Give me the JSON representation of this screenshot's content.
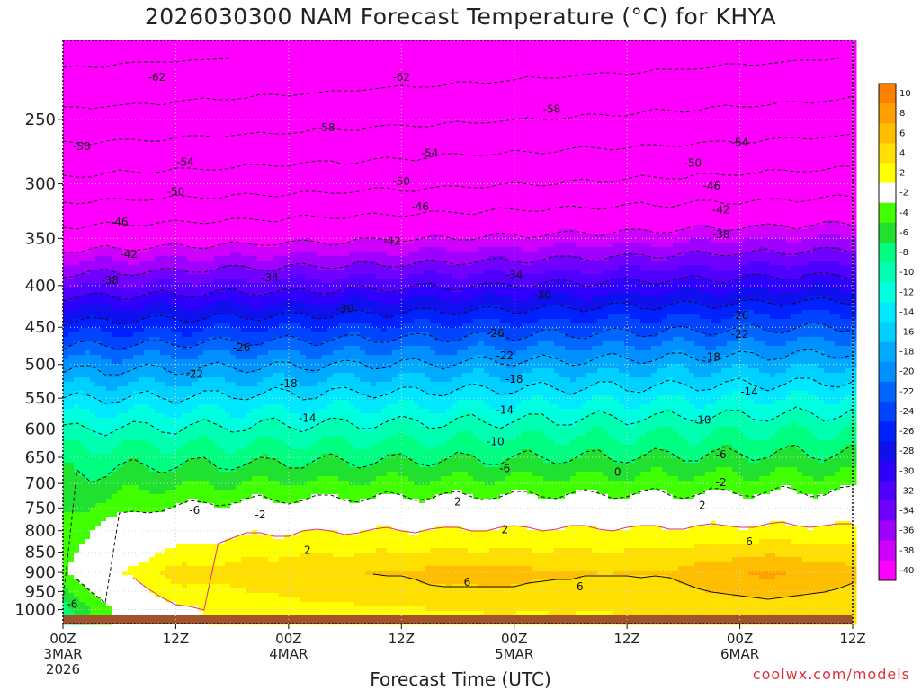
{
  "title": "2026030300 NAM Forecast Temperature (°C) for KHYA",
  "credit": "coolwx.com/models",
  "chart_data": {
    "type": "heatmap",
    "title": "2026030300 NAM Forecast Temperature (°C) for KHYA",
    "xlabel": "Forecast Time (UTC)",
    "ylabel": "",
    "x_ticks": [
      {
        "hour": 0,
        "lines": [
          "00Z",
          "3MAR",
          "2026"
        ]
      },
      {
        "hour": 12,
        "lines": [
          "12Z"
        ]
      },
      {
        "hour": 24,
        "lines": [
          "00Z",
          "4MAR"
        ]
      },
      {
        "hour": 36,
        "lines": [
          "12Z"
        ]
      },
      {
        "hour": 48,
        "lines": [
          "00Z",
          "5MAR"
        ]
      },
      {
        "hour": 60,
        "lines": [
          "12Z"
        ]
      },
      {
        "hour": 72,
        "lines": [
          "00Z",
          "6MAR"
        ]
      },
      {
        "hour": 84,
        "lines": [
          "12Z"
        ]
      }
    ],
    "xlim": [
      0,
      84
    ],
    "y_ticks": [
      250,
      300,
      350,
      400,
      450,
      500,
      550,
      600,
      650,
      700,
      750,
      800,
      850,
      900,
      950,
      1000
    ],
    "ylim": [
      1040,
      200
    ],
    "y_scale": "log",
    "grid": true,
    "colorbar": {
      "placement": "right",
      "labels": [
        "10",
        "8",
        "6",
        "4",
        "2",
        "-2",
        "-4",
        "-6",
        "-8",
        "-10",
        "-12",
        "-14",
        "-16",
        "-18",
        "-20",
        "-22",
        "-24",
        "-26",
        "-28",
        "-30",
        "-32",
        "-34",
        "-36",
        "-38",
        "-40"
      ],
      "colors": [
        "#ff8000",
        "#ff9f00",
        "#ffbf00",
        "#ffdf00",
        "#ffff00",
        "#ffffff",
        "#40ff00",
        "#20e030",
        "#00ff80",
        "#00ffb0",
        "#00ffdf",
        "#00e8ff",
        "#00d0ff",
        "#00aaff",
        "#0090ff",
        "#0066ff",
        "#0044ff",
        "#0022ff",
        "#1010ee",
        "#3000ff",
        "#5000ff",
        "#7000ff",
        "#a000ff",
        "#d000ff",
        "#ff00ff"
      ]
    },
    "temperature_profile": [
      {
        "pressure": 1000,
        "temp": 4
      },
      {
        "pressure": 950,
        "temp": 5
      },
      {
        "pressure": 900,
        "temp": 6
      },
      {
        "pressure": 850,
        "temp": 4
      },
      {
        "pressure": 800,
        "temp": 2
      },
      {
        "pressure": 750,
        "temp": -1
      },
      {
        "pressure": 700,
        "temp": -4
      },
      {
        "pressure": 650,
        "temp": -7
      },
      {
        "pressure": 600,
        "temp": -10
      },
      {
        "pressure": 550,
        "temp": -14
      },
      {
        "pressure": 500,
        "temp": -19
      },
      {
        "pressure": 450,
        "temp": -25
      },
      {
        "pressure": 400,
        "temp": -32
      },
      {
        "pressure": 350,
        "temp": -40
      },
      {
        "pressure": 300,
        "temp": -49
      },
      {
        "pressure": 250,
        "temp": -57
      },
      {
        "pressure": 210,
        "temp": -63
      }
    ],
    "contour_labels": [
      {
        "text": "-62",
        "hour": 10,
        "pressure": 222
      },
      {
        "text": "-62",
        "hour": 36,
        "pressure": 222
      },
      {
        "text": "-58",
        "hour": 2,
        "pressure": 270
      },
      {
        "text": "-58",
        "hour": 28,
        "pressure": 256
      },
      {
        "text": "-58",
        "hour": 52,
        "pressure": 243
      },
      {
        "text": "-54",
        "hour": 13,
        "pressure": 282
      },
      {
        "text": "-54",
        "hour": 39,
        "pressure": 275
      },
      {
        "text": "-54",
        "hour": 72,
        "pressure": 267
      },
      {
        "text": "-50",
        "hour": 12,
        "pressure": 307
      },
      {
        "text": "-50",
        "hour": 36,
        "pressure": 298
      },
      {
        "text": "-50",
        "hour": 67,
        "pressure": 283
      },
      {
        "text": "-46",
        "hour": 6,
        "pressure": 334
      },
      {
        "text": "-46",
        "hour": 38,
        "pressure": 320
      },
      {
        "text": "-46",
        "hour": 69,
        "pressure": 302
      },
      {
        "text": "-42",
        "hour": 7,
        "pressure": 366
      },
      {
        "text": "-42",
        "hour": 35,
        "pressure": 353
      },
      {
        "text": "-42",
        "hour": 70,
        "pressure": 323
      },
      {
        "text": "-38",
        "hour": 5,
        "pressure": 394
      },
      {
        "text": "-38",
        "hour": 70,
        "pressure": 346
      },
      {
        "text": "-34",
        "hour": 22,
        "pressure": 391
      },
      {
        "text": "-34",
        "hour": 48,
        "pressure": 388
      },
      {
        "text": "-30",
        "hour": 30,
        "pressure": 427
      },
      {
        "text": "-30",
        "hour": 51,
        "pressure": 411
      },
      {
        "text": "-26",
        "hour": 19,
        "pressure": 477
      },
      {
        "text": "-26",
        "hour": 46,
        "pressure": 458
      },
      {
        "text": "-26",
        "hour": 72,
        "pressure": 435
      },
      {
        "text": "-22",
        "hour": 14,
        "pressure": 514
      },
      {
        "text": "-22",
        "hour": 47,
        "pressure": 488
      },
      {
        "text": "-22",
        "hour": 72,
        "pressure": 459
      },
      {
        "text": "-18",
        "hour": 24,
        "pressure": 528
      },
      {
        "text": "-18",
        "hour": 48,
        "pressure": 521
      },
      {
        "text": "-18",
        "hour": 69,
        "pressure": 490
      },
      {
        "text": "-14",
        "hour": 26,
        "pressure": 582
      },
      {
        "text": "-14",
        "hour": 47,
        "pressure": 569
      },
      {
        "text": "-14",
        "hour": 73,
        "pressure": 540
      },
      {
        "text": "-10",
        "hour": 46,
        "pressure": 622
      },
      {
        "text": "-10",
        "hour": 68,
        "pressure": 585
      },
      {
        "text": "-6",
        "hour": 47,
        "pressure": 671
      },
      {
        "text": "-6",
        "hour": 70,
        "pressure": 645
      },
      {
        "text": "-6",
        "hour": 14,
        "pressure": 755
      },
      {
        "text": "-6",
        "hour": 1,
        "pressure": 985
      },
      {
        "text": "-2",
        "hour": 21,
        "pressure": 765
      },
      {
        "text": "-2",
        "hour": 70,
        "pressure": 698
      },
      {
        "text": "2",
        "hour": 42,
        "pressure": 737
      },
      {
        "text": "2",
        "hour": 68,
        "pressure": 745
      },
      {
        "text": "2",
        "hour": 47,
        "pressure": 798
      },
      {
        "text": "2",
        "hour": 26,
        "pressure": 845
      },
      {
        "text": "6",
        "hour": 43,
        "pressure": 925
      },
      {
        "text": "6",
        "hour": 55,
        "pressure": 937
      },
      {
        "text": "6",
        "hour": 73,
        "pressure": 825
      },
      {
        "text": "0",
        "hour": 59,
        "pressure": 678
      }
    ]
  }
}
